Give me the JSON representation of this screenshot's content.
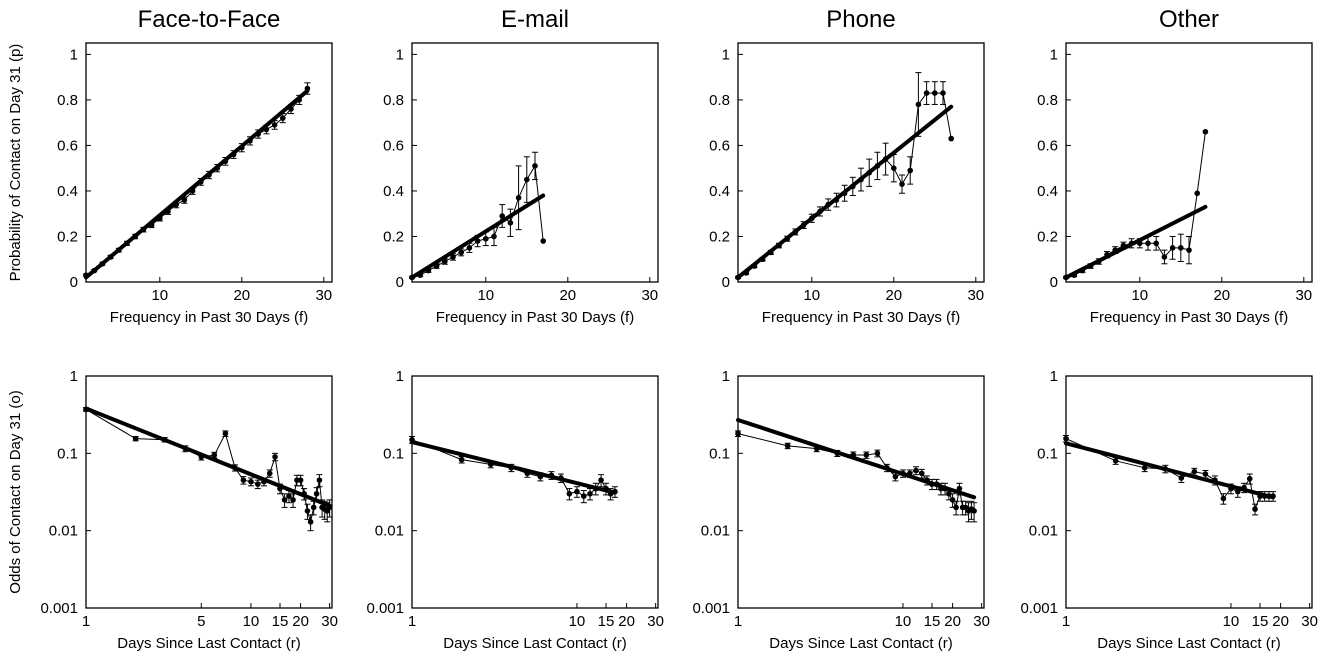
{
  "chart_data": [
    {
      "id": "p1",
      "type": "line",
      "row": "top",
      "title": "Face-to-Face",
      "xlabel": "Frequency in Past 30 Days (f)",
      "ylabel": "Probability of Contact on Day 31 (p)",
      "xlim": [
        1,
        31
      ],
      "ylim": [
        0,
        1.05
      ],
      "yscale": "linear",
      "xscale": "linear",
      "xticks": [
        {
          "v": 10,
          "label": "10"
        },
        {
          "v": 20,
          "label": "20"
        },
        {
          "v": 30,
          "label": "30"
        }
      ],
      "yticks": [
        {
          "v": 0,
          "label": "0"
        },
        {
          "v": 0.2,
          "label": "0.2"
        },
        {
          "v": 0.4,
          "label": "0.4"
        },
        {
          "v": 0.6,
          "label": "0.6"
        },
        {
          "v": 0.8,
          "label": "0.8"
        },
        {
          "v": 1,
          "label": "1"
        }
      ],
      "fit": {
        "x": [
          1,
          28
        ],
        "y": [
          0.02,
          0.84
        ]
      },
      "observed": {
        "x": [
          1,
          2,
          3,
          4,
          5,
          6,
          7,
          8,
          9,
          10,
          11,
          12,
          13,
          14,
          15,
          16,
          17,
          18,
          19,
          20,
          21,
          22,
          23,
          24,
          25,
          26,
          27,
          28
        ],
        "y": [
          0.03,
          0.05,
          0.08,
          0.11,
          0.14,
          0.17,
          0.2,
          0.23,
          0.25,
          0.28,
          0.31,
          0.34,
          0.36,
          0.4,
          0.44,
          0.47,
          0.5,
          0.53,
          0.56,
          0.59,
          0.62,
          0.65,
          0.67,
          0.69,
          0.72,
          0.76,
          0.8,
          0.85
        ],
        "err": [
          0.005,
          0.005,
          0.006,
          0.007,
          0.008,
          0.009,
          0.01,
          0.01,
          0.011,
          0.012,
          0.013,
          0.014,
          0.014,
          0.015,
          0.015,
          0.016,
          0.016,
          0.017,
          0.017,
          0.018,
          0.018,
          0.018,
          0.019,
          0.019,
          0.02,
          0.02,
          0.02,
          0.025
        ]
      }
    },
    {
      "id": "p2",
      "type": "line",
      "row": "top",
      "title": "E-mail",
      "xlabel": "Frequency in Past 30 Days (f)",
      "ylabel": "",
      "xlim": [
        1,
        31
      ],
      "ylim": [
        0,
        1.05
      ],
      "yscale": "linear",
      "xscale": "linear",
      "xticks": [
        {
          "v": 10,
          "label": "10"
        },
        {
          "v": 20,
          "label": "20"
        },
        {
          "v": 30,
          "label": "30"
        }
      ],
      "yticks": [
        {
          "v": 0,
          "label": "0"
        },
        {
          "v": 0.2,
          "label": "0.2"
        },
        {
          "v": 0.4,
          "label": "0.4"
        },
        {
          "v": 0.6,
          "label": "0.6"
        },
        {
          "v": 0.8,
          "label": "0.8"
        },
        {
          "v": 1,
          "label": "1"
        }
      ],
      "fit": {
        "x": [
          1,
          17
        ],
        "y": [
          0.02,
          0.38
        ]
      },
      "observed": {
        "x": [
          1,
          2,
          3,
          4,
          5,
          6,
          7,
          8,
          9,
          10,
          11,
          12,
          13,
          14,
          15,
          16,
          17
        ],
        "y": [
          0.02,
          0.03,
          0.05,
          0.07,
          0.09,
          0.11,
          0.13,
          0.15,
          0.18,
          0.19,
          0.2,
          0.29,
          0.26,
          0.37,
          0.45,
          0.51,
          0.18
        ],
        "err": [
          0.005,
          0.005,
          0.008,
          0.01,
          0.012,
          0.014,
          0.015,
          0.02,
          0.025,
          0.03,
          0.04,
          0.05,
          0.06,
          0.14,
          0.1,
          0.06,
          0
        ]
      }
    },
    {
      "id": "p3",
      "type": "line",
      "row": "top",
      "title": "Phone",
      "xlabel": "Frequency in Past 30 Days (f)",
      "ylabel": "",
      "xlim": [
        1,
        31
      ],
      "ylim": [
        0,
        1.05
      ],
      "yscale": "linear",
      "xscale": "linear",
      "xticks": [
        {
          "v": 10,
          "label": "10"
        },
        {
          "v": 20,
          "label": "20"
        },
        {
          "v": 30,
          "label": "30"
        }
      ],
      "yticks": [
        {
          "v": 0,
          "label": "0"
        },
        {
          "v": 0.2,
          "label": "0.2"
        },
        {
          "v": 0.4,
          "label": "0.4"
        },
        {
          "v": 0.6,
          "label": "0.6"
        },
        {
          "v": 0.8,
          "label": "0.8"
        },
        {
          "v": 1,
          "label": "1"
        }
      ],
      "fit": {
        "x": [
          1,
          27
        ],
        "y": [
          0.02,
          0.77
        ]
      },
      "observed": {
        "x": [
          1,
          2,
          3,
          4,
          5,
          6,
          7,
          8,
          9,
          10,
          11,
          12,
          13,
          14,
          15,
          16,
          17,
          18,
          19,
          20,
          21,
          22,
          23,
          24,
          25,
          26,
          27
        ],
        "y": [
          0.02,
          0.04,
          0.07,
          0.1,
          0.13,
          0.16,
          0.19,
          0.22,
          0.25,
          0.28,
          0.31,
          0.34,
          0.36,
          0.39,
          0.42,
          0.45,
          0.48,
          0.51,
          0.54,
          0.5,
          0.43,
          0.49,
          0.78,
          0.83,
          0.83,
          0.83,
          0.63
        ],
        "err": [
          0.005,
          0.006,
          0.007,
          0.008,
          0.009,
          0.01,
          0.011,
          0.013,
          0.015,
          0.018,
          0.02,
          0.025,
          0.03,
          0.035,
          0.04,
          0.05,
          0.06,
          0.06,
          0.07,
          0.06,
          0.04,
          0.06,
          0.14,
          0.05,
          0.05,
          0.05,
          0
        ]
      }
    },
    {
      "id": "p4",
      "type": "line",
      "row": "top",
      "title": "Other",
      "xlabel": "Frequency in Past 30 Days (f)",
      "ylabel": "",
      "xlim": [
        1,
        31
      ],
      "ylim": [
        0,
        1.05
      ],
      "yscale": "linear",
      "xscale": "linear",
      "xticks": [
        {
          "v": 10,
          "label": "10"
        },
        {
          "v": 20,
          "label": "20"
        },
        {
          "v": 30,
          "label": "30"
        }
      ],
      "yticks": [
        {
          "v": 0,
          "label": "0"
        },
        {
          "v": 0.2,
          "label": "0.2"
        },
        {
          "v": 0.4,
          "label": "0.4"
        },
        {
          "v": 0.6,
          "label": "0.6"
        },
        {
          "v": 0.8,
          "label": "0.8"
        },
        {
          "v": 1,
          "label": "1"
        }
      ],
      "fit": {
        "x": [
          1,
          18
        ],
        "y": [
          0.02,
          0.33
        ]
      },
      "observed": {
        "x": [
          1,
          2,
          3,
          4,
          5,
          6,
          7,
          8,
          9,
          10,
          11,
          12,
          13,
          14,
          15,
          16,
          17,
          18
        ],
        "y": [
          0.02,
          0.03,
          0.05,
          0.07,
          0.09,
          0.12,
          0.14,
          0.16,
          0.17,
          0.17,
          0.17,
          0.17,
          0.11,
          0.15,
          0.15,
          0.14,
          0.39,
          0.66
        ],
        "err": [
          0.005,
          0.006,
          0.008,
          0.01,
          0.012,
          0.014,
          0.015,
          0.015,
          0.02,
          0.02,
          0.03,
          0.03,
          0.03,
          0.05,
          0.06,
          0.06,
          0,
          0
        ]
      }
    },
    {
      "id": "p5",
      "type": "line",
      "row": "bottom",
      "title": "",
      "xlabel": "Days Since Last Contact (r)",
      "ylabel": "Odds of Contact on Day 31 (o)",
      "xlim": [
        1,
        31
      ],
      "ylim": [
        0.001,
        1
      ],
      "yscale": "log",
      "xscale": "log",
      "xticks": [
        {
          "v": 1,
          "label": "1"
        },
        {
          "v": 5,
          "label": "5"
        },
        {
          "v": 10,
          "label": "10"
        },
        {
          "v": 15,
          "label": "15"
        },
        {
          "v": 20,
          "label": "20"
        },
        {
          "v": 30,
          "label": "30"
        }
      ],
      "yticks": [
        {
          "v": 0.001,
          "label": "0.001"
        },
        {
          "v": 0.01,
          "label": "0.01"
        },
        {
          "v": 0.1,
          "label": "0.1"
        },
        {
          "v": 1,
          "label": "1"
        }
      ],
      "fit": {
        "x": [
          1,
          30
        ],
        "y": [
          0.38,
          0.021
        ]
      },
      "observed": {
        "x": [
          1,
          2,
          3,
          4,
          5,
          6,
          7,
          8,
          9,
          10,
          11,
          12,
          13,
          14,
          15,
          16,
          17,
          18,
          19,
          20,
          21,
          22,
          23,
          24,
          25,
          26,
          27,
          28,
          29,
          30
        ],
        "y": [
          0.37,
          0.155,
          0.15,
          0.115,
          0.09,
          0.095,
          0.18,
          0.065,
          0.045,
          0.043,
          0.04,
          0.043,
          0.055,
          0.09,
          0.035,
          0.025,
          0.028,
          0.025,
          0.045,
          0.045,
          0.03,
          0.018,
          0.013,
          0.02,
          0.03,
          0.045,
          0.02,
          0.019,
          0.018,
          0.02
        ],
        "err": [
          0.02,
          0.01,
          0.01,
          0.01,
          0.008,
          0.008,
          0.015,
          0.006,
          0.005,
          0.005,
          0.005,
          0.005,
          0.006,
          0.01,
          0.005,
          0.005,
          0.005,
          0.005,
          0.007,
          0.007,
          0.005,
          0.004,
          0.003,
          0.004,
          0.006,
          0.008,
          0.005,
          0.005,
          0.005,
          0.005
        ]
      }
    },
    {
      "id": "p6",
      "type": "line",
      "row": "bottom",
      "title": "",
      "xlabel": "Days Since Last Contact (r)",
      "ylabel": "",
      "xlim": [
        1,
        31
      ],
      "ylim": [
        0.001,
        1
      ],
      "yscale": "log",
      "xscale": "log",
      "xticks": [
        {
          "v": 1,
          "label": "1"
        },
        {
          "v": 10,
          "label": "10"
        },
        {
          "v": 15,
          "label": "15"
        },
        {
          "v": 20,
          "label": "20"
        },
        {
          "v": 30,
          "label": "30"
        }
      ],
      "yticks": [
        {
          "v": 0.001,
          "label": "0.001"
        },
        {
          "v": 0.01,
          "label": "0.01"
        },
        {
          "v": 0.1,
          "label": "0.1"
        },
        {
          "v": 1,
          "label": "1"
        }
      ],
      "fit": {
        "x": [
          1,
          17
        ],
        "y": [
          0.14,
          0.031
        ]
      },
      "observed": {
        "x": [
          1,
          2,
          3,
          4,
          5,
          6,
          7,
          8,
          9,
          10,
          11,
          12,
          13,
          14,
          15,
          16,
          17
        ],
        "y": [
          0.15,
          0.083,
          0.072,
          0.065,
          0.055,
          0.05,
          0.052,
          0.048,
          0.03,
          0.032,
          0.028,
          0.03,
          0.035,
          0.045,
          0.035,
          0.03,
          0.032
        ],
        "err": [
          0.015,
          0.008,
          0.007,
          0.007,
          0.006,
          0.006,
          0.006,
          0.006,
          0.005,
          0.005,
          0.005,
          0.005,
          0.006,
          0.008,
          0.006,
          0.005,
          0.005
        ]
      }
    },
    {
      "id": "p7",
      "type": "line",
      "row": "bottom",
      "title": "",
      "xlabel": "Days Since Last Contact (r)",
      "ylabel": "",
      "xlim": [
        1,
        31
      ],
      "ylim": [
        0.001,
        1
      ],
      "yscale": "log",
      "xscale": "log",
      "xticks": [
        {
          "v": 1,
          "label": "1"
        },
        {
          "v": 10,
          "label": "10"
        },
        {
          "v": 15,
          "label": "15"
        },
        {
          "v": 20,
          "label": "20"
        },
        {
          "v": 30,
          "label": "30"
        }
      ],
      "yticks": [
        {
          "v": 0.001,
          "label": "0.001"
        },
        {
          "v": 0.01,
          "label": "0.01"
        },
        {
          "v": 0.1,
          "label": "0.1"
        },
        {
          "v": 1,
          "label": "1"
        }
      ],
      "fit": {
        "x": [
          1,
          27
        ],
        "y": [
          0.27,
          0.027
        ]
      },
      "observed": {
        "x": [
          1,
          2,
          3,
          4,
          5,
          6,
          7,
          8,
          9,
          10,
          11,
          12,
          13,
          14,
          15,
          16,
          17,
          18,
          19,
          20,
          21,
          22,
          23,
          24,
          25,
          26,
          27
        ],
        "y": [
          0.18,
          0.125,
          0.115,
          0.1,
          0.095,
          0.095,
          0.1,
          0.065,
          0.05,
          0.055,
          0.055,
          0.06,
          0.055,
          0.045,
          0.04,
          0.04,
          0.035,
          0.035,
          0.03,
          0.025,
          0.02,
          0.035,
          0.02,
          0.02,
          0.018,
          0.019,
          0.018
        ],
        "err": [
          0.015,
          0.01,
          0.01,
          0.009,
          0.009,
          0.009,
          0.01,
          0.007,
          0.006,
          0.006,
          0.006,
          0.007,
          0.007,
          0.006,
          0.006,
          0.006,
          0.006,
          0.006,
          0.005,
          0.005,
          0.004,
          0.006,
          0.004,
          0.004,
          0.005,
          0.005,
          0.005
        ]
      }
    },
    {
      "id": "p8",
      "type": "line",
      "row": "bottom",
      "title": "",
      "xlabel": "Days Since Last Contact (r)",
      "ylabel": "",
      "xlim": [
        1,
        31
      ],
      "ylim": [
        0.001,
        1
      ],
      "yscale": "log",
      "xscale": "log",
      "xticks": [
        {
          "v": 1,
          "label": "1"
        },
        {
          "v": 10,
          "label": "10"
        },
        {
          "v": 15,
          "label": "15"
        },
        {
          "v": 20,
          "label": "20"
        },
        {
          "v": 30,
          "label": "30"
        }
      ],
      "yticks": [
        {
          "v": 0.001,
          "label": "0.001"
        },
        {
          "v": 0.01,
          "label": "0.01"
        },
        {
          "v": 0.1,
          "label": "0.1"
        },
        {
          "v": 1,
          "label": "1"
        }
      ],
      "fit": {
        "x": [
          1,
          18
        ],
        "y": [
          0.135,
          0.027
        ]
      },
      "observed": {
        "x": [
          1,
          2,
          3,
          4,
          5,
          6,
          7,
          8,
          9,
          10,
          11,
          12,
          13,
          14,
          15,
          16,
          17,
          18
        ],
        "y": [
          0.155,
          0.08,
          0.065,
          0.063,
          0.048,
          0.058,
          0.054,
          0.045,
          0.026,
          0.035,
          0.032,
          0.036,
          0.047,
          0.019,
          0.028,
          0.028,
          0.028,
          0.028
        ],
        "err": [
          0.015,
          0.008,
          0.007,
          0.007,
          0.006,
          0.006,
          0.006,
          0.006,
          0.004,
          0.005,
          0.005,
          0.005,
          0.007,
          0.003,
          0.004,
          0.004,
          0.004,
          0.004
        ]
      }
    }
  ]
}
